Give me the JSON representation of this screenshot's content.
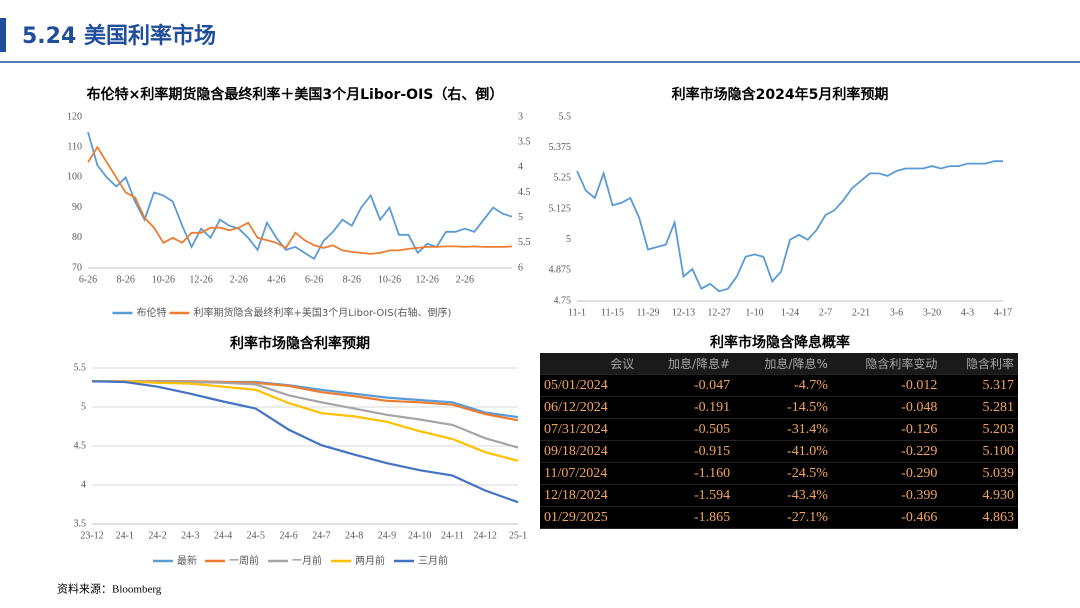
{
  "header": {
    "title": "5.24 美国利率市场"
  },
  "chart_data": [
    {
      "type": "line",
      "title": "布伦特×利率期货隐含最终利率＋美国3个月Libor-OIS（右、倒）",
      "categories": [
        "6-26",
        null,
        null,
        null,
        "8-26",
        null,
        null,
        null,
        "10-26",
        null,
        null,
        null,
        "12-26",
        null,
        null,
        null,
        "2-26",
        null,
        null,
        null,
        "4-26",
        null,
        null,
        null,
        "6-26",
        null,
        null,
        null,
        "8-26",
        null,
        null,
        null,
        "10-26",
        null,
        null,
        null,
        "12-26",
        null,
        null,
        null,
        "2-26",
        null,
        null,
        null,
        null,
        null
      ],
      "ylim": [
        70,
        120
      ],
      "yticks": [
        70,
        80,
        90,
        100,
        110,
        120
      ],
      "y2lim": [
        3,
        6
      ],
      "y2ticks": [
        3,
        3.5,
        4,
        4.5,
        5,
        5.5,
        6
      ],
      "y2_inverted": true,
      "grid": false,
      "series": [
        {
          "name": "布伦特",
          "color": "#5b9bd5",
          "values": [
            115,
            104,
            100,
            97,
            100,
            92,
            86,
            95,
            94,
            92,
            84,
            77,
            83,
            80,
            86,
            84,
            83,
            80,
            76,
            85,
            80,
            76,
            77,
            75,
            73,
            79,
            82,
            86,
            84,
            90,
            94,
            86,
            90,
            81,
            81,
            75,
            78,
            77,
            82,
            82,
            83,
            82,
            86,
            90,
            88,
            87
          ]
        },
        {
          "name": "利率期货隐含最终利率+美国3个月Libor-OIS(右轴、倒序)",
          "color": "#ed7d31",
          "axis": "y2",
          "values": [
            3.9,
            3.6,
            3.9,
            4.2,
            4.5,
            4.6,
            5.0,
            5.2,
            5.5,
            5.4,
            5.5,
            5.3,
            5.3,
            5.2,
            5.2,
            5.25,
            5.2,
            5.1,
            5.4,
            5.45,
            5.5,
            5.6,
            5.3,
            5.45,
            5.55,
            5.6,
            5.55,
            5.65,
            5.68,
            5.7,
            5.72,
            5.7,
            5.65,
            5.65,
            5.62,
            5.6,
            5.58,
            5.58,
            5.57,
            5.57,
            5.58,
            5.57,
            5.58,
            5.58,
            5.58,
            5.57
          ]
        }
      ]
    },
    {
      "type": "line",
      "title": "利率市场隐含2024年5月利率预期",
      "categories": [
        "11-1",
        null,
        null,
        null,
        "11-15",
        null,
        null,
        null,
        "11-29",
        null,
        null,
        null,
        "12-13",
        null,
        null,
        null,
        "12-27",
        null,
        null,
        null,
        "1-10",
        null,
        null,
        null,
        "1-24",
        null,
        null,
        null,
        "2-7",
        null,
        null,
        null,
        "2-21",
        null,
        null,
        null,
        "3-6",
        null,
        null,
        null,
        "3-20",
        null,
        null,
        null,
        "4-3",
        null,
        null,
        null,
        "4-17"
      ],
      "ylim": [
        4.75,
        5.5
      ],
      "yticks": [
        4.75,
        4.875,
        5,
        5.125,
        5.25,
        5.375,
        5.5
      ],
      "grid": false,
      "series": [
        {
          "name": null,
          "color": "#5b9bd5",
          "values": [
            5.28,
            5.2,
            5.17,
            5.27,
            5.14,
            5.15,
            5.17,
            5.09,
            4.96,
            4.97,
            4.98,
            5.07,
            4.85,
            4.88,
            4.8,
            4.82,
            4.79,
            4.8,
            4.85,
            4.93,
            4.94,
            4.93,
            4.83,
            4.87,
            5.0,
            5.02,
            5.0,
            5.04,
            5.1,
            5.12,
            5.16,
            5.21,
            5.24,
            5.27,
            5.27,
            5.26,
            5.28,
            5.29,
            5.29,
            5.29,
            5.3,
            5.29,
            5.3,
            5.3,
            5.31,
            5.31,
            5.31,
            5.32,
            5.32
          ]
        }
      ]
    },
    {
      "type": "line",
      "title": "利率市场隐含利率预期",
      "categories": [
        "23-12",
        "24-1",
        "24-2",
        "24-3",
        "24-4",
        "24-5",
        "24-6",
        "24-7",
        "24-8",
        "24-9",
        "24-10",
        "24-11",
        "24-12",
        "25-1"
      ],
      "ylim": [
        3.5,
        5.5
      ],
      "yticks": [
        3.5,
        4,
        4.5,
        5,
        5.5
      ],
      "grid": true,
      "series": [
        {
          "name": "最新",
          "color": "#5b9bd5",
          "values": [
            5.33,
            5.33,
            5.33,
            5.33,
            5.32,
            5.32,
            5.28,
            5.22,
            5.17,
            5.12,
            5.09,
            5.06,
            4.93,
            4.87
          ]
        },
        {
          "name": "一周前",
          "color": "#ed7d31",
          "values": [
            5.33,
            5.33,
            5.33,
            5.33,
            5.32,
            5.31,
            5.27,
            5.19,
            5.14,
            5.08,
            5.06,
            5.03,
            4.91,
            4.83
          ]
        },
        {
          "name": "一月前",
          "color": "#a5a5a5",
          "values": [
            5.33,
            5.33,
            5.32,
            5.32,
            5.31,
            5.29,
            5.15,
            5.06,
            4.98,
            4.9,
            4.84,
            4.77,
            4.6,
            4.48
          ]
        },
        {
          "name": "两月前",
          "color": "#ffc000",
          "values": [
            5.33,
            5.33,
            5.31,
            5.3,
            5.26,
            5.22,
            5.05,
            4.92,
            4.88,
            4.81,
            4.69,
            4.59,
            4.42,
            4.31
          ]
        },
        {
          "name": "三月前",
          "color": "#4472c4",
          "values": [
            5.33,
            5.32,
            5.26,
            5.17,
            5.07,
            4.98,
            4.71,
            4.51,
            4.39,
            4.28,
            4.19,
            4.12,
            3.93,
            3.78
          ]
        }
      ]
    }
  ],
  "table": {
    "title": "利率市场隐含降息概率",
    "header": [
      "会议",
      "加息/降息#",
      "加息/降息%",
      "隐含利率变动",
      "隐含利率"
    ],
    "rows": [
      [
        "05/01/2024",
        "-0.047",
        "-4.7%",
        "-0.012",
        "5.317"
      ],
      [
        "06/12/2024",
        "-0.191",
        "-14.5%",
        "-0.048",
        "5.281"
      ],
      [
        "07/31/2024",
        "-0.505",
        "-31.4%",
        "-0.126",
        "5.203"
      ],
      [
        "09/18/2024",
        "-0.915",
        "-41.0%",
        "-0.229",
        "5.100"
      ],
      [
        "11/07/2024",
        "-1.160",
        "-24.5%",
        "-0.290",
        "5.039"
      ],
      [
        "12/18/2024",
        "-1.594",
        "-43.4%",
        "-0.399",
        "4.930"
      ],
      [
        "01/29/2025",
        "-1.865",
        "-27.1%",
        "-0.466",
        "4.863"
      ]
    ]
  },
  "source": "资料来源：Bloomberg"
}
